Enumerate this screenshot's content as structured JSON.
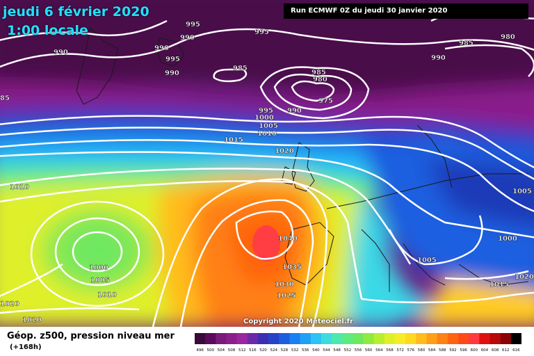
{
  "header": {
    "date": "jeudi 6 février 2020",
    "time": "1:00 locale",
    "run": "Run ECMWF 0Z du jeudi 30 janvier 2020"
  },
  "copyright": "Copyright 2020 Meteociel.fr",
  "footer": {
    "title": "Géop. z500, pression niveau mer",
    "subtitle": "(+168h)"
  },
  "isobar_labels": {
    "l995a": "995",
    "l990a": "990",
    "l990b": "990",
    "l995b": "995",
    "l990c": "990",
    "l990d": "990",
    "l995c": "995",
    "l985a": "985",
    "l985b": "985",
    "l980": "980",
    "l975": "975",
    "l995d": "995",
    "l990e": "990",
    "l1000": "1000",
    "l1005a": "1005",
    "l1010a": "1010",
    "l1015a": "1015",
    "l1020a": "1020",
    "l985c": "985",
    "l980b": "980",
    "l990f": "990",
    "l85": "85",
    "l1010b": "1010",
    "l1040": "1040",
    "l1035": "1035",
    "l1030": "1030",
    "l1025": "1025",
    "l1000b": "1000",
    "l1005b": "1005",
    "l1010c": "1010",
    "l1020b": "1020",
    "l1020c": "1020",
    "l1005c": "1005",
    "l1005d": "1005",
    "l1000c": "1000",
    "l1015b": "1015",
    "l1020d": "1020"
  },
  "scale": {
    "values": [
      "496",
      "500",
      "504",
      "508",
      "512",
      "516",
      "520",
      "524",
      "528",
      "532",
      "536",
      "540",
      "544",
      "548",
      "552",
      "556",
      "560",
      "564",
      "568",
      "572",
      "576",
      "580",
      "584",
      "588",
      "592",
      "596",
      "600",
      "604",
      "608",
      "612",
      "616"
    ],
    "colors": [
      "#3a0a3a",
      "#5c0a5c",
      "#7a1a7a",
      "#8a1f8c",
      "#9a26a0",
      "#6a2aa8",
      "#3b2fb2",
      "#2443c8",
      "#1c5ee0",
      "#1a7ff0",
      "#1fa0f5",
      "#2bc3f5",
      "#3ddbe0",
      "#4de8b0",
      "#5ceb80",
      "#6ee860",
      "#90ea40",
      "#b8ee30",
      "#dff02a",
      "#f6ec28",
      "#ffd820",
      "#ffbc1c",
      "#ff9e18",
      "#ff8014",
      "#ff6410",
      "#ff4a18",
      "#ff3a40",
      "#e01010",
      "#b80808",
      "#880404",
      "#000000"
    ]
  },
  "colors": {
    "isobar": "#ffffff",
    "title_cyan": "#22e0ff"
  }
}
